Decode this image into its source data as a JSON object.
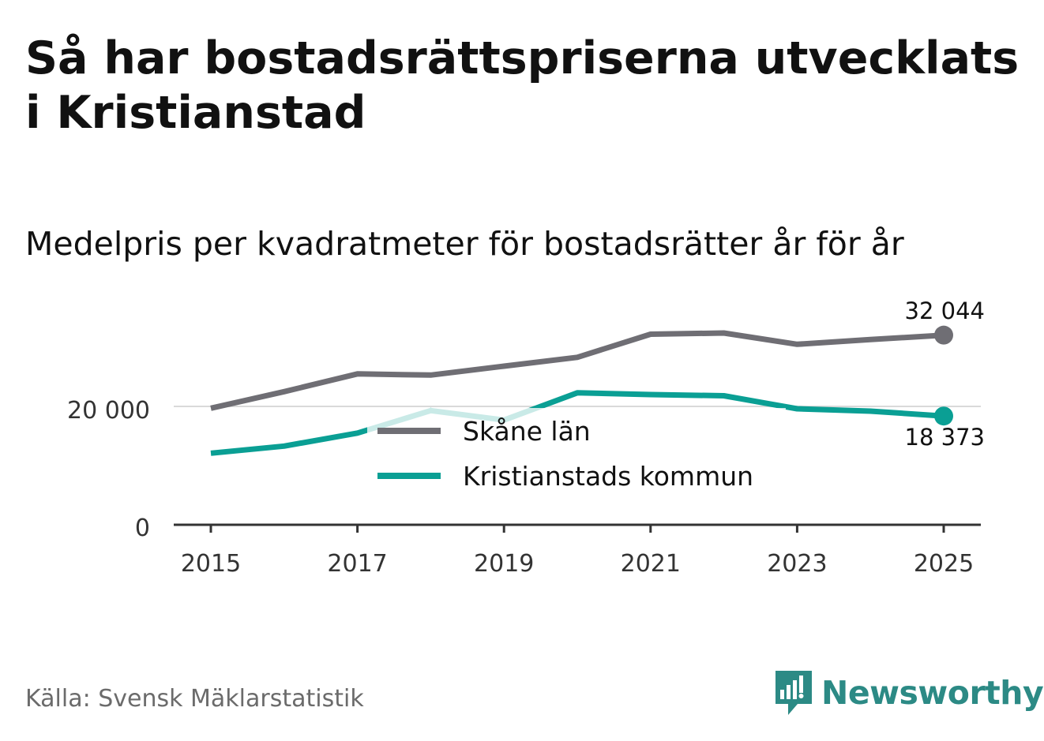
{
  "title": "Så har bostadsrättspriserna utvecklats i Kristianstad",
  "subtitle": "Medelpris per kvadratmeter för bostadsrätter år för år",
  "source": "Källa: Svensk Mäklarstatistik",
  "brand": "Newsworthy",
  "colors": {
    "skane": "#6f6e74",
    "kristianstad": "#0a9f94",
    "grid": "#d9d9d9",
    "axis": "#333333"
  },
  "chart_data": {
    "type": "line",
    "title": "Så har bostadsrättspriserna utvecklats i Kristianstad",
    "subtitle": "Medelpris per kvadratmeter för bostadsrätter år för år",
    "x": [
      2015,
      2016,
      2017,
      2018,
      2019,
      2020,
      2021,
      2022,
      2023,
      2024,
      2025
    ],
    "xticks": [
      "2015",
      "2017",
      "2019",
      "2021",
      "2023",
      "2025"
    ],
    "yticks": [
      "0",
      "20 000"
    ],
    "ylim": [
      0,
      35000
    ],
    "grid": true,
    "legend": "center",
    "series": [
      {
        "name": "Skåne län",
        "values": [
          19700,
          22500,
          25500,
          25300,
          26800,
          28300,
          32200,
          32400,
          30500,
          31300,
          32044
        ],
        "end_label": "32 044"
      },
      {
        "name": "Kristianstads kommun",
        "values": [
          12100,
          13300,
          15500,
          19300,
          17700,
          22300,
          22000,
          21800,
          19600,
          19200,
          18373
        ],
        "end_label": "18 373"
      }
    ]
  }
}
